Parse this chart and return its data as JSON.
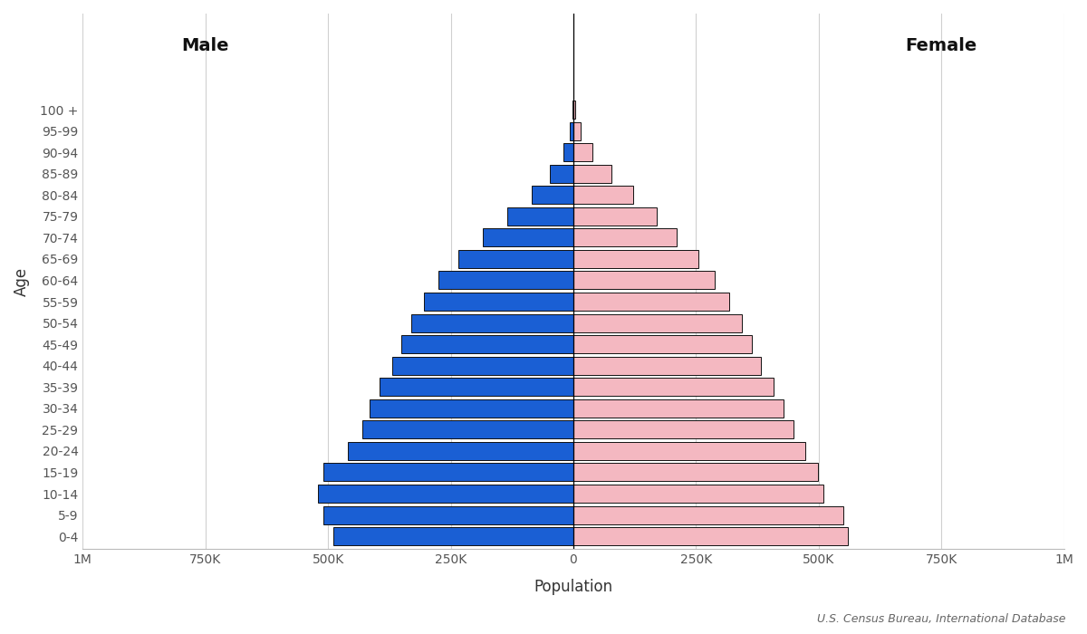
{
  "age_groups": [
    "0-4",
    "5-9",
    "10-14",
    "15-19",
    "20-24",
    "25-29",
    "30-34",
    "35-39",
    "40-44",
    "45-49",
    "50-54",
    "55-59",
    "60-64",
    "65-69",
    "70-74",
    "75-79",
    "80-84",
    "85-89",
    "90-94",
    "95-99",
    "100 +"
  ],
  "male": [
    490000,
    510000,
    520000,
    510000,
    460000,
    430000,
    415000,
    395000,
    370000,
    350000,
    330000,
    305000,
    275000,
    235000,
    185000,
    135000,
    85000,
    48000,
    20000,
    7000,
    1800
  ],
  "female": [
    560000,
    550000,
    510000,
    498000,
    472000,
    448000,
    428000,
    408000,
    383000,
    363000,
    343000,
    318000,
    288000,
    255000,
    210000,
    170000,
    122000,
    78000,
    38000,
    15000,
    4500
  ],
  "male_color": "#1a5fd4",
  "female_color": "#f4b8c1",
  "edgecolor": "#111111",
  "xlabel": "Population",
  "ylabel": "Age",
  "male_label": "Male",
  "female_label": "Female",
  "source_text": "U.S. Census Bureau, International Database",
  "xlim": 1000000,
  "tick_values": [
    0,
    250000,
    500000,
    750000,
    1000000
  ],
  "tick_labels": [
    "0",
    "250K",
    "500K",
    "750K",
    "1M"
  ],
  "background_color": "#ffffff",
  "grid_color": "#d0d0d0",
  "bar_height": 0.85,
  "label_fontsize": 12,
  "tick_fontsize": 10,
  "gender_fontsize": 14,
  "source_fontsize": 9
}
